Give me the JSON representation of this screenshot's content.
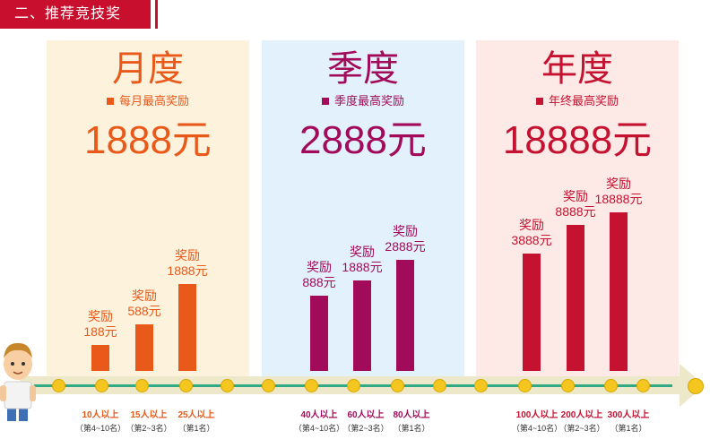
{
  "header": {
    "title": "二、推荐竞技奖"
  },
  "panels": [
    {
      "title": "月度",
      "subtitle": "每月最高奖励",
      "amount": "1888元"
    },
    {
      "title": "季度",
      "subtitle": "季度最高奖励",
      "amount": "2888元"
    },
    {
      "title": "年度",
      "subtitle": "年终最高奖励",
      "amount": "18888元"
    }
  ],
  "bars": [
    {
      "label": "奖励",
      "value_text": "188元",
      "value": 188,
      "group": "monthly"
    },
    {
      "label": "奖励",
      "value_text": "588元",
      "value": 588,
      "group": "monthly"
    },
    {
      "label": "奖励",
      "value_text": "1888元",
      "value": 1888,
      "group": "monthly"
    },
    {
      "label": "奖励",
      "value_text": "888元",
      "value": 888,
      "group": "quarterly"
    },
    {
      "label": "奖励",
      "value_text": "1888元",
      "value": 1888,
      "group": "quarterly"
    },
    {
      "label": "奖励",
      "value_text": "2888元",
      "value": 2888,
      "group": "quarterly"
    },
    {
      "label": "奖励",
      "value_text": "3888元",
      "value": 3888,
      "group": "annual"
    },
    {
      "label": "奖励",
      "value_text": "8888元",
      "value": 8888,
      "group": "annual"
    },
    {
      "label": "奖励",
      "value_text": "18888元",
      "value": 18888,
      "group": "annual"
    }
  ],
  "tiers": [
    {
      "people": "10人以上",
      "rank": "（第4~10名）"
    },
    {
      "people": "15人以上",
      "rank": "（第2~3名）"
    },
    {
      "people": "25人以上",
      "rank": "（第1名）"
    },
    {
      "people": "40人以上",
      "rank": "（第4~10名）"
    },
    {
      "people": "60人以上",
      "rank": "（第2~3名）"
    },
    {
      "people": "80人以上",
      "rank": "（第1名）"
    },
    {
      "people": "100人以上",
      "rank": "（第4~10名）"
    },
    {
      "people": "200人以上",
      "rank": "（第2~3名）"
    },
    {
      "people": "300人以上",
      "rank": "（第1名）"
    }
  ],
  "colors": {
    "header": "#c8102e",
    "monthly": "#e8591a",
    "quarterly": "#a20b5a",
    "annual": "#c41230",
    "monthly_bg": "#fdf2dc",
    "quarterly_bg": "#e2f1fb",
    "annual_bg": "#fde9e6",
    "track": "#ece8c9",
    "track_line": "#2faa84",
    "dot": "#f4c61f"
  },
  "icons": {
    "person": "cartoon-person-icon",
    "arrow": "arrow-right-icon",
    "bullet": "square-bullet-icon"
  }
}
